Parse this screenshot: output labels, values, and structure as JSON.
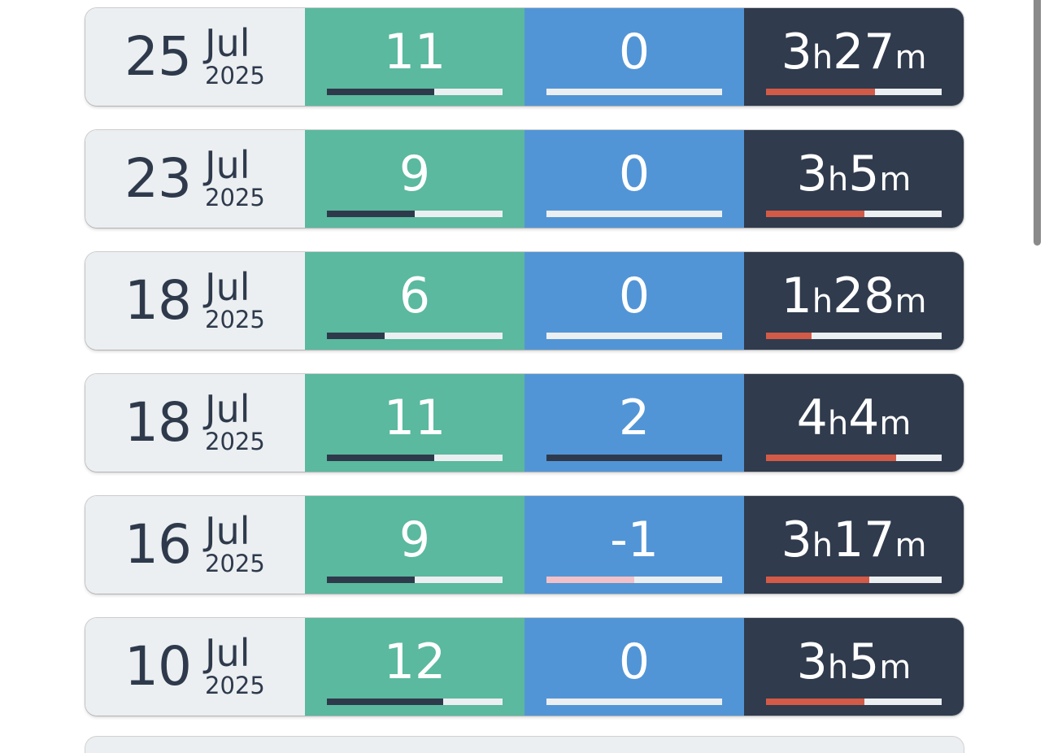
{
  "rows": [
    {
      "day": "25",
      "month": "Jul",
      "year": "2025",
      "count": "11",
      "count_progress": 0.61,
      "delta": "0",
      "delta_progress": 0,
      "delta_negative": false,
      "duration_hours": "3",
      "duration_minutes": "27",
      "duration_progress": 0.62
    },
    {
      "day": "23",
      "month": "Jul",
      "year": "2025",
      "count": "9",
      "count_progress": 0.5,
      "delta": "0",
      "delta_progress": 0,
      "delta_negative": false,
      "duration_hours": "3",
      "duration_minutes": "5",
      "duration_progress": 0.56
    },
    {
      "day": "18",
      "month": "Jul",
      "year": "2025",
      "count": "6",
      "count_progress": 0.33,
      "delta": "0",
      "delta_progress": 0,
      "delta_negative": false,
      "duration_hours": "1",
      "duration_minutes": "28",
      "duration_progress": 0.26
    },
    {
      "day": "18",
      "month": "Jul",
      "year": "2025",
      "count": "11",
      "count_progress": 0.61,
      "delta": "2",
      "delta_progress": 1.0,
      "delta_negative": false,
      "duration_hours": "4",
      "duration_minutes": "4",
      "duration_progress": 0.74
    },
    {
      "day": "16",
      "month": "Jul",
      "year": "2025",
      "count": "9",
      "count_progress": 0.5,
      "delta": "-1",
      "delta_progress": 0.5,
      "delta_negative": true,
      "duration_hours": "3",
      "duration_minutes": "17",
      "duration_progress": 0.59
    },
    {
      "day": "10",
      "month": "Jul",
      "year": "2025",
      "count": "12",
      "count_progress": 0.66,
      "delta": "0",
      "delta_progress": 0,
      "delta_negative": false,
      "duration_hours": "3",
      "duration_minutes": "5",
      "duration_progress": 0.56
    }
  ],
  "units": {
    "hours": "h",
    "minutes": "m"
  },
  "colors": {
    "date_bg": "#eceff1",
    "count_bg": "#5ab99e",
    "delta_bg": "#5295d6",
    "duration_bg": "#303b4d",
    "duration_fill": "#d35a47",
    "negative_fill": "#f2c1c8"
  }
}
